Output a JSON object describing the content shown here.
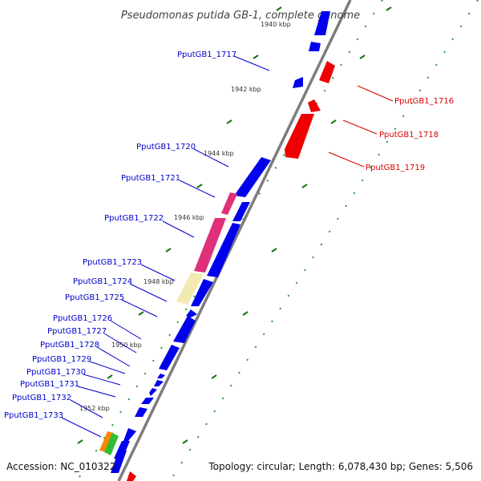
{
  "title": "Pseudomonas putida GB-1, complete genome",
  "accession": "Accession: NC_010322",
  "topology": "Topology: circular; Length: 6,078,430 bp; Genes: 5,506",
  "colors": {
    "left_label": "#0000cc",
    "right_label": "#dd0000",
    "gene_blue": "#0000ee",
    "gene_red": "#ee0000",
    "gene_pink": "#e0307a",
    "gene_yellow": "#f2eab0",
    "gene_orange": "#ff8800",
    "gene_green": "#33bb33",
    "backbone": "#888888",
    "tick_green": "#117711"
  },
  "kbp_ticks": [
    "1940 kbp",
    "1942 kbp",
    "1944 kbp",
    "1946 kbp",
    "1948 kbp",
    "1950 kbp",
    "1952 kbp"
  ],
  "left_labels": [
    "PputGB1_1717",
    "PputGB1_1720",
    "PputGB1_1721",
    "PputGB1_1722",
    "PputGB1_1723",
    "PputGB1_1724",
    "PputGB1_1725",
    "PputGB1_1726",
    "PputGB1_1727",
    "PputGB1_1728",
    "PputGB1_1729",
    "PputGB1_1730",
    "PputGB1_1731",
    "PputGB1_1732",
    "PputGB1_1733"
  ],
  "right_labels": [
    "PputGB1_1716",
    "PputGB1_1718",
    "PputGB1_1719"
  ]
}
